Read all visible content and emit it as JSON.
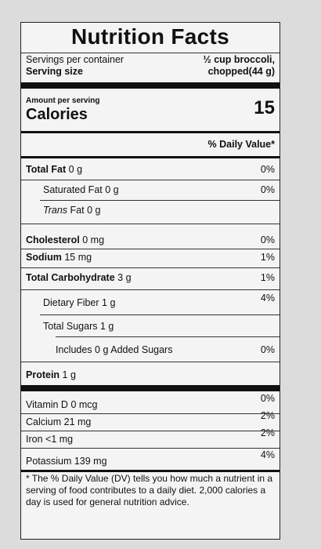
{
  "title": "Nutrition Facts",
  "servings": {
    "per_container_label": "Servings per container",
    "size_label": "Serving size",
    "size_value_line1": "½ cup broccoli,",
    "size_value_line2": "chopped(44 g)"
  },
  "amount_per_serving": "Amount per serving",
  "calories": {
    "label": "Calories",
    "value": "15"
  },
  "dv_header": "% Daily Value*",
  "nutrients": {
    "total_fat": {
      "name": "Total Fat",
      "amount": "0 g",
      "dv": "0%"
    },
    "saturated_fat": {
      "name": "Saturated Fat",
      "amount": "0 g",
      "dv": "0%"
    },
    "trans_fat": {
      "name": "Trans",
      "suffix": "Fat",
      "amount": "0 g"
    },
    "cholesterol": {
      "name": "Cholesterol",
      "amount": "0 mg",
      "dv": "0%"
    },
    "sodium": {
      "name": "Sodium",
      "amount": "15 mg",
      "dv": "1%"
    },
    "total_carb": {
      "name": "Total Carbohydrate",
      "amount": "3 g",
      "dv": "1%"
    },
    "fiber": {
      "name": "Dietary Fiber",
      "amount": "1 g",
      "dv": "4%"
    },
    "total_sugars": {
      "name": "Total Sugars",
      "amount": "1 g"
    },
    "added_sugars": {
      "name_prefix": "Includes",
      "amount": "0 g",
      "name": "Added Sugars",
      "dv": "0%"
    },
    "protein": {
      "name": "Protein",
      "amount": "1 g"
    }
  },
  "vitamins": {
    "vitamin_d": {
      "name": "Vitamin D",
      "amount": "0 mcg",
      "dv": "0%"
    },
    "calcium": {
      "name": "Calcium",
      "amount": "21 mg",
      "dv": "2%"
    },
    "iron": {
      "name": "Iron",
      "amount": "<1 mg",
      "dv": "2%"
    },
    "potassium": {
      "name": "Potassium",
      "amount": "139 mg",
      "dv": "4%"
    }
  },
  "footnote": "* The % Daily Value (DV) tells you how much a nutrient in a serving of food contributes to a daily diet. 2,000 calories a day is used for general nutrition advice."
}
